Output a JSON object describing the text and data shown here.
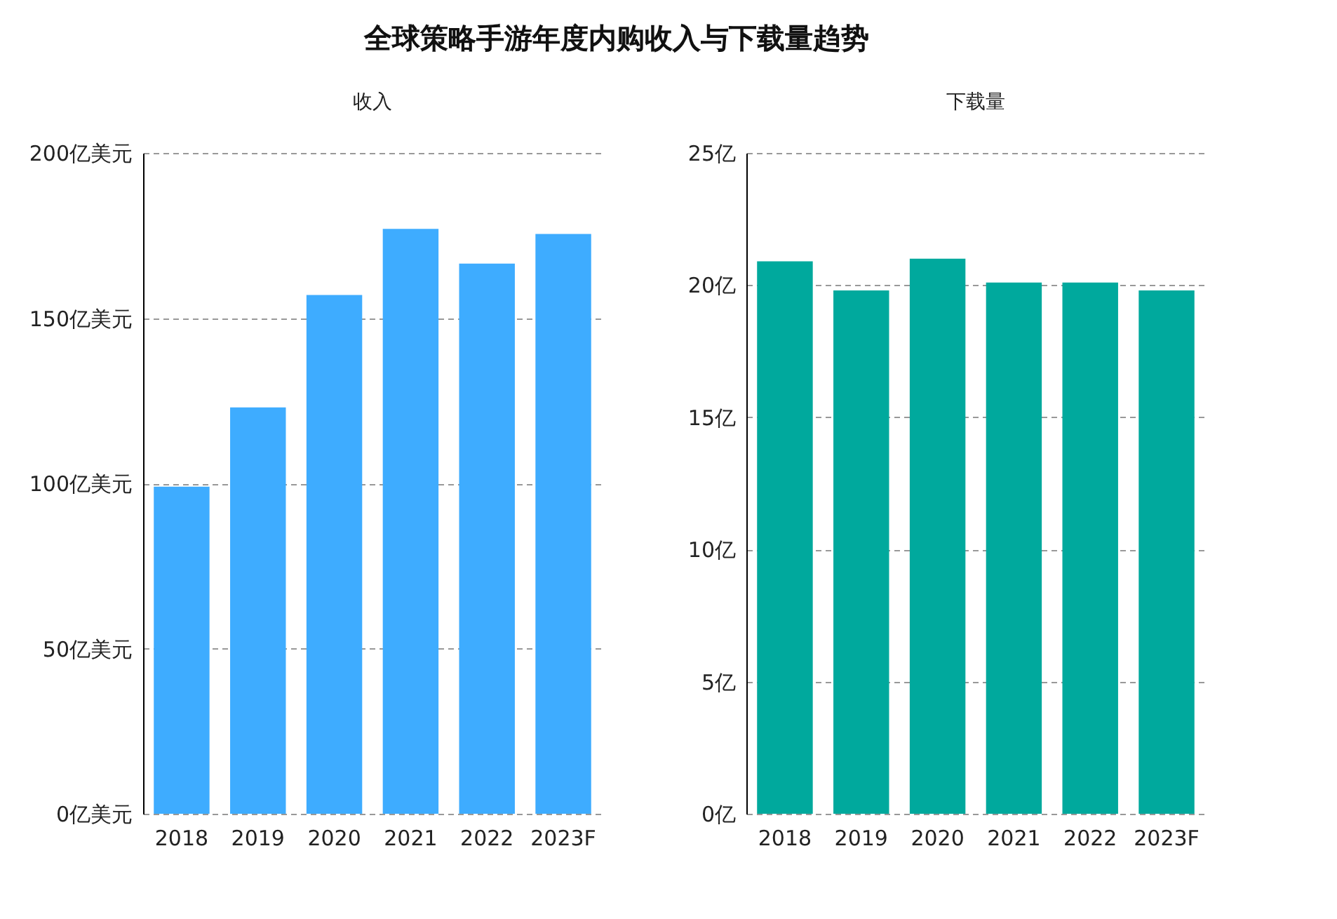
{
  "chart_data": [
    {
      "type": "bar",
      "title": "全球策略手游年度内购收入与下载量趋势",
      "subtitle": "收入",
      "categories": [
        "2018",
        "2019",
        "2020",
        "2021",
        "2022",
        "2023F"
      ],
      "values": [
        99,
        123,
        157,
        177,
        166.5,
        175.5
      ],
      "color": "#3eacff",
      "ylim": [
        0,
        200
      ],
      "yticks": [
        {
          "value": 0,
          "label": "0亿美元"
        },
        {
          "value": 50,
          "label": "50亿美元"
        },
        {
          "value": 100,
          "label": "100亿美元"
        },
        {
          "value": 150,
          "label": "150亿美元"
        },
        {
          "value": 200,
          "label": "200亿美元"
        }
      ],
      "grid": "y"
    },
    {
      "type": "bar",
      "subtitle": "下载量",
      "categories": [
        "2018",
        "2019",
        "2020",
        "2021",
        "2022",
        "2023F"
      ],
      "values": [
        20.9,
        19.8,
        21.0,
        20.1,
        20.1,
        19.8
      ],
      "color": "#00a99d",
      "ylim": [
        0,
        25
      ],
      "yticks": [
        {
          "value": 0,
          "label": "0亿"
        },
        {
          "value": 5,
          "label": "5亿"
        },
        {
          "value": 10,
          "label": "10亿"
        },
        {
          "value": 15,
          "label": "15亿"
        },
        {
          "value": 20,
          "label": "20亿"
        },
        {
          "value": 25,
          "label": "25亿"
        }
      ],
      "grid": "y"
    }
  ]
}
